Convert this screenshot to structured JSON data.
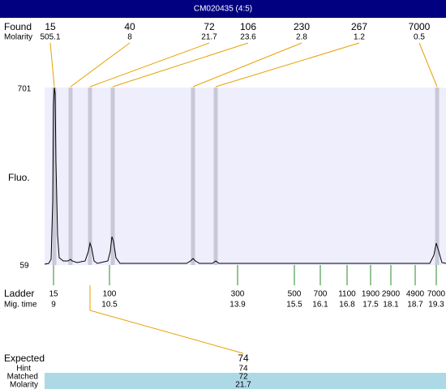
{
  "header": {
    "title": "CM020435 (4:5)"
  },
  "found": {
    "label": "Found",
    "molarity_label": "Molarity",
    "sizes": [
      15,
      40,
      72,
      106,
      230,
      267,
      7000
    ],
    "molarity": [
      505.1,
      8,
      21.7,
      23.6,
      2.8,
      1.2,
      0.5
    ]
  },
  "plot": {
    "y_label": "Fluo.",
    "y_max": 701,
    "y_min": 59
  },
  "ladder": {
    "label": "Ladder",
    "mig_label": "Mig. time",
    "sizes": [
      15,
      100,
      300,
      500,
      700,
      1100,
      1900,
      2900,
      4900,
      7000
    ],
    "mig_times": [
      9,
      10.5,
      13.9,
      15.5,
      16.1,
      16.8,
      17.5,
      18.1,
      18.7,
      19.3
    ]
  },
  "match": {
    "expected_label": "Expected",
    "expected": 74,
    "hint_label": "Hint",
    "hint": 74,
    "matched_label": "Matched",
    "matched": 72,
    "molarity_label": "Molarity",
    "molarity": 21.7
  }
}
